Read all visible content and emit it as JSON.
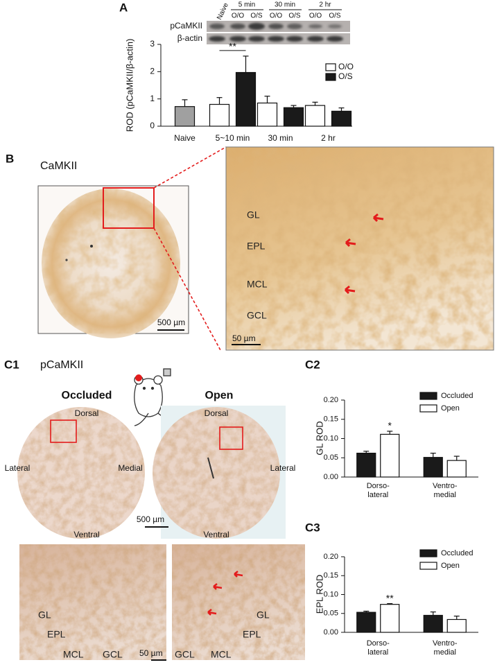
{
  "chart_data": [
    {
      "type": "bar",
      "ylabel": "ROD (pCaMKII/β-actin)",
      "categories": [
        "Naive",
        "5~10 min",
        "30 min",
        "2 hr"
      ],
      "series": [
        {
          "name": "O/O",
          "color": "#ffffff",
          "colors": [
            "#a0a0a0",
            "#ffffff",
            "#ffffff",
            "#ffffff"
          ],
          "values": [
            0.72,
            0.8,
            0.85,
            0.76
          ],
          "errors": [
            0.25,
            0.25,
            0.25,
            0.12
          ]
        },
        {
          "name": "O/S",
          "color": "#1a1a1a",
          "values": [
            null,
            1.97,
            0.68,
            0.55
          ],
          "errors": [
            null,
            0.6,
            0.08,
            0.12
          ]
        }
      ],
      "ylim": [
        0,
        3
      ],
      "yticks": [
        0,
        1,
        2,
        3
      ],
      "annotations": [
        "**"
      ]
    },
    {
      "type": "bar",
      "ylabel": "GL ROD",
      "categories": [
        [
          "Dorso-",
          "lateral"
        ],
        [
          "Ventro-",
          "medial"
        ]
      ],
      "series": [
        {
          "name": "Occluded",
          "color": "#1a1a1a",
          "values": [
            0.062,
            0.051
          ],
          "errors": [
            0.005,
            0.011
          ]
        },
        {
          "name": "Open",
          "color": "#ffffff",
          "values": [
            0.111,
            0.043
          ],
          "errors": [
            0.008,
            0.011
          ]
        }
      ],
      "ylim": [
        0,
        0.2
      ],
      "yticks": [
        {
          "value": 0,
          "label": "0.00"
        },
        {
          "value": 0.05,
          "label": "0.05"
        },
        {
          "value": 0.1,
          "label": "0.10"
        },
        {
          "value": 0.15,
          "label": "0.15"
        },
        {
          "value": 0.2,
          "label": "0.20"
        }
      ],
      "annotations": [
        "*"
      ]
    },
    {
      "type": "bar",
      "ylabel": "EPL ROD",
      "categories": [
        [
          "Dorso-",
          "lateral"
        ],
        [
          "Ventro-",
          "medial"
        ]
      ],
      "series": [
        {
          "name": "Occluded",
          "color": "#1a1a1a",
          "values": [
            0.053,
            0.045
          ],
          "errors": [
            0.003,
            0.009
          ]
        },
        {
          "name": "Open",
          "color": "#ffffff",
          "values": [
            0.074,
            0.034
          ],
          "errors": [
            0.002,
            0.009
          ]
        }
      ],
      "ylim": [
        0,
        0.2
      ],
      "yticks": [
        {
          "value": 0,
          "label": "0.00"
        },
        {
          "value": 0.05,
          "label": "0.05"
        },
        {
          "value": 0.1,
          "label": "0.10"
        },
        {
          "value": 0.15,
          "label": "0.15"
        },
        {
          "value": 0.2,
          "label": "0.20"
        }
      ],
      "annotations": [
        "**"
      ]
    }
  ],
  "figure": {
    "panel_labels": [
      "A",
      "B",
      "C1",
      "C2",
      "C3"
    ],
    "blot": {
      "rows": [
        "pCaMKII",
        "β-actin"
      ],
      "lane": "Naive",
      "groups": [
        "5 min",
        "30 min",
        "2 hr"
      ],
      "lane_labels": [
        "O/O",
        "O/S"
      ]
    },
    "B": {
      "stain": "CaMKII",
      "overview_scale": "500 µm",
      "layers": [
        "GL",
        "EPL",
        "MCL",
        "GCL"
      ],
      "zoom_scale": "50 µm"
    },
    "C1": {
      "stain": "pCaMKII",
      "conditions": [
        "Occluded",
        "Open"
      ],
      "orientation": {
        "dorsal": "Dorsal",
        "ventral": "Ventral",
        "lateral": "Lateral",
        "medial": "Medial"
      },
      "overview_scale": "500 µm",
      "layers": [
        "GL",
        "EPL",
        "MCL",
        "GCL"
      ],
      "zoom_scale": "50 µm"
    }
  }
}
